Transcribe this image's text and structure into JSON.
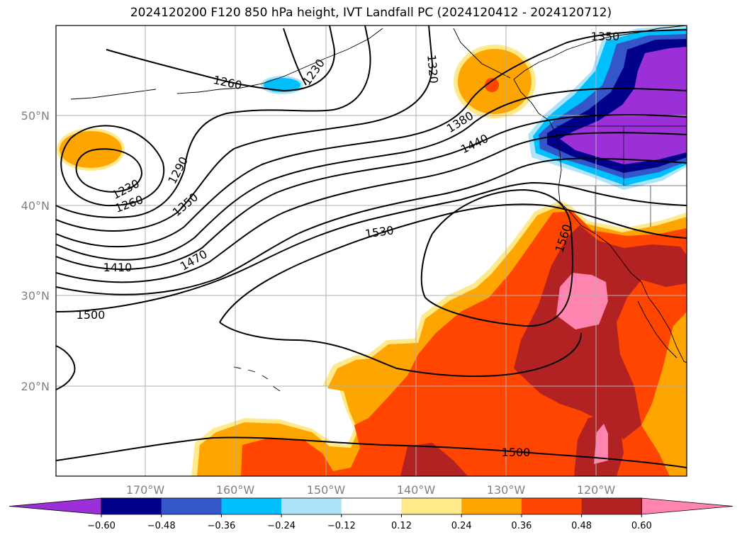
{
  "title": "2024120200 F120 850 hPa height, IVT Landfall PC (2024120412 - 2024120712)",
  "lat_labels": [
    "50°N",
    "40°N",
    "30°N",
    "20°N"
  ],
  "lon_labels": [
    "170°W",
    "160°W",
    "150°W",
    "140°W",
    "130°W",
    "120°W"
  ],
  "contour_labels": [
    "1230",
    "1260",
    "1290",
    "1320",
    "1350",
    "1380",
    "1410",
    "1440",
    "1470",
    "1500",
    "1530",
    "1560"
  ],
  "colorbar": {
    "ticks": [
      "−0.60",
      "−0.48",
      "−0.36",
      "−0.24",
      "−0.12",
      "0.12",
      "0.24",
      "0.36",
      "0.48",
      "0.60"
    ],
    "colors": [
      "#9b30d8",
      "#00008b",
      "#3456c8",
      "#00bfff",
      "#ade4fa",
      "#ffffff",
      "#ffe98a",
      "#ffa500",
      "#ff4500",
      "#b22222",
      "#ff85b0"
    ]
  }
}
